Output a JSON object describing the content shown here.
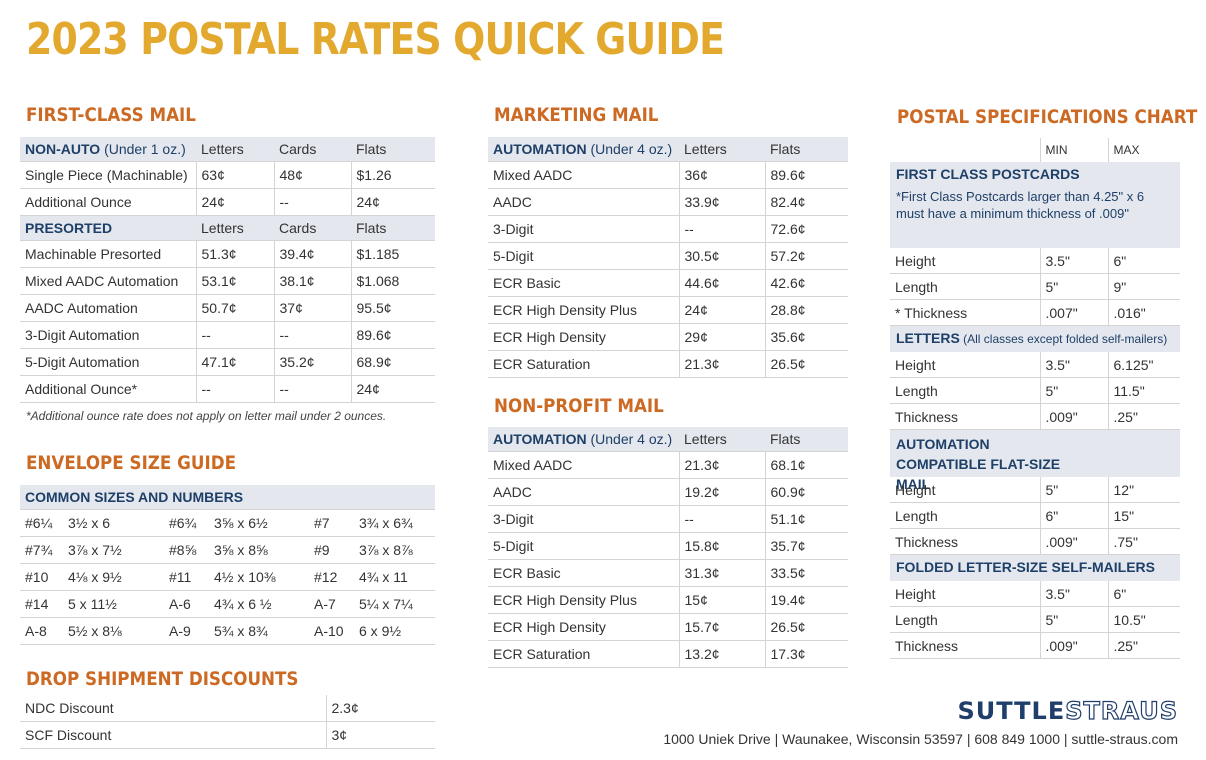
{
  "title": "2023 POSTAL RATES QUICK GUIDE",
  "first_class": {
    "title": "FIRST-CLASS MAIL",
    "nonauto_header": {
      "label_bold": "NON-AUTO",
      "label_rest": " (Under 1 oz.)",
      "cols": [
        "Letters",
        "Cards",
        "Flats"
      ]
    },
    "nonauto_rows": [
      [
        "Single Piece (Machinable)",
        "63¢",
        "48¢",
        "$1.26"
      ],
      [
        "Additional Ounce",
        "24¢",
        "--",
        "24¢"
      ]
    ],
    "presorted_header": {
      "label": "PRESORTED",
      "cols": [
        "Letters",
        "Cards",
        "Flats"
      ]
    },
    "presorted_rows": [
      [
        "Machinable Presorted",
        "51.3¢",
        "39.4¢",
        "$1.185"
      ],
      [
        "Mixed AADC Automation",
        "53.1¢",
        "38.1¢",
        "$1.068"
      ],
      [
        "AADC Automation",
        "50.7¢",
        "37¢",
        "95.5¢"
      ],
      [
        "3-Digit Automation",
        "--",
        "--",
        "89.6¢"
      ],
      [
        "5-Digit Automation",
        "47.1¢",
        "35.2¢",
        "68.9¢"
      ],
      [
        "Additional Ounce*",
        "--",
        "--",
        "24¢"
      ]
    ],
    "note": "*Additional ounce rate does not apply on letter mail under 2 ounces."
  },
  "envelope": {
    "title": "ENVELOPE SIZE GUIDE",
    "header": "COMMON SIZES AND NUMBERS",
    "rows": [
      [
        "#6¼",
        "3½ x 6",
        "#6¾",
        "3⅝ x 6½",
        "#7",
        "3¾ x 6¾"
      ],
      [
        "#7¾",
        "3⅞ x 7½",
        "#8⅝",
        "3⅝ x 8⅝",
        "#9",
        "3⅞ x 8⅞"
      ],
      [
        "#10",
        "4⅛ x 9½",
        "#11",
        "4½ x 10⅜",
        "#12",
        "4¾ x 11"
      ],
      [
        "#14",
        "5 x 11½",
        "A-6",
        "4¾ x 6 ½",
        "A-7",
        "5¼ x 7¼"
      ],
      [
        "A-8",
        "5½ x 8⅛",
        "A-9",
        "5¾ x 8¾",
        "A-10",
        "6 x 9½"
      ]
    ]
  },
  "drop": {
    "title": "DROP SHIPMENT DISCOUNTS",
    "rows": [
      [
        "NDC Discount",
        "2.3¢"
      ],
      [
        "SCF Discount",
        "3¢"
      ]
    ]
  },
  "marketing": {
    "title": "MARKETING MAIL",
    "header": {
      "label_bold": "AUTOMATION",
      "label_rest": " (Under 4 oz.)",
      "cols": [
        "Letters",
        "Flats"
      ]
    },
    "rows": [
      [
        "Mixed AADC",
        "36¢",
        "89.6¢"
      ],
      [
        "AADC",
        "33.9¢",
        "82.4¢"
      ],
      [
        "3-Digit",
        "--",
        "72.6¢"
      ],
      [
        "5-Digit",
        "30.5¢",
        "57.2¢"
      ],
      [
        "ECR Basic",
        "44.6¢",
        "42.6¢"
      ],
      [
        "ECR High Density Plus",
        "24¢",
        "28.8¢"
      ],
      [
        "ECR High Density",
        "29¢",
        "35.6¢"
      ],
      [
        "ECR Saturation",
        "21.3¢",
        "26.5¢"
      ]
    ]
  },
  "nonprofit": {
    "title": "NON-PROFIT MAIL",
    "header": {
      "label_bold": "AUTOMATION",
      "label_rest": " (Under 4 oz.)",
      "cols": [
        "Letters",
        "Flats"
      ]
    },
    "rows": [
      [
        "Mixed AADC",
        "21.3¢",
        "68.1¢"
      ],
      [
        "AADC",
        "19.2¢",
        "60.9¢"
      ],
      [
        "3-Digit",
        "--",
        "51.1¢"
      ],
      [
        "5-Digit",
        "15.8¢",
        "35.7¢"
      ],
      [
        "ECR Basic",
        "31.3¢",
        "33.5¢"
      ],
      [
        "ECR High Density Plus",
        "15¢",
        "19.4¢"
      ],
      [
        "ECR High Density",
        "15.7¢",
        "26.5¢"
      ],
      [
        "ECR Saturation",
        "13.2¢",
        "17.3¢"
      ]
    ]
  },
  "specs": {
    "title": "POSTAL SPECIFICATIONS CHART",
    "min": "MIN",
    "max": "MAX",
    "groups": [
      {
        "title": "FIRST CLASS POSTCARDS",
        "sub": "",
        "note": "*First Class Postcards larger than 4.25\" x 6 must have a minimum thickness of .009\"",
        "rows": [
          [
            "Height",
            "3.5\"",
            "6\""
          ],
          [
            "Length",
            "5\"",
            "9\""
          ],
          [
            "* Thickness",
            ".007\"",
            ".016\""
          ]
        ]
      },
      {
        "title": "LETTERS",
        "sub": " (All classes except folded self-mailers)",
        "note": "",
        "rows": [
          [
            "Height",
            "3.5\"",
            "6.125\""
          ],
          [
            "Length",
            "5\"",
            "11.5\""
          ],
          [
            "Thickness",
            ".009\"",
            ".25\""
          ]
        ]
      },
      {
        "title": "AUTOMATION COMPATIBLE FLAT-SIZE MAIL",
        "sub": "",
        "note": "",
        "rows": [
          [
            "Height",
            "5\"",
            "12\""
          ],
          [
            "Length",
            "6\"",
            "15\""
          ],
          [
            "Thickness",
            ".009\"",
            ".75\""
          ]
        ]
      },
      {
        "title": "FOLDED LETTER-SIZE SELF-MAILERS",
        "sub": "",
        "note": "",
        "rows": [
          [
            "Height",
            "3.5\"",
            "6\""
          ],
          [
            "Length",
            "5\"",
            "10.5\""
          ],
          [
            "Thickness",
            ".009\"",
            ".25\""
          ]
        ]
      }
    ]
  },
  "brand": {
    "logo_a": "SUTTLE",
    "logo_b": "STRAUS"
  },
  "footer": "1000 Uniek Drive  |  Waunakee, Wisconsin 53597  |  608 849 1000  |  suttle-straus.com"
}
